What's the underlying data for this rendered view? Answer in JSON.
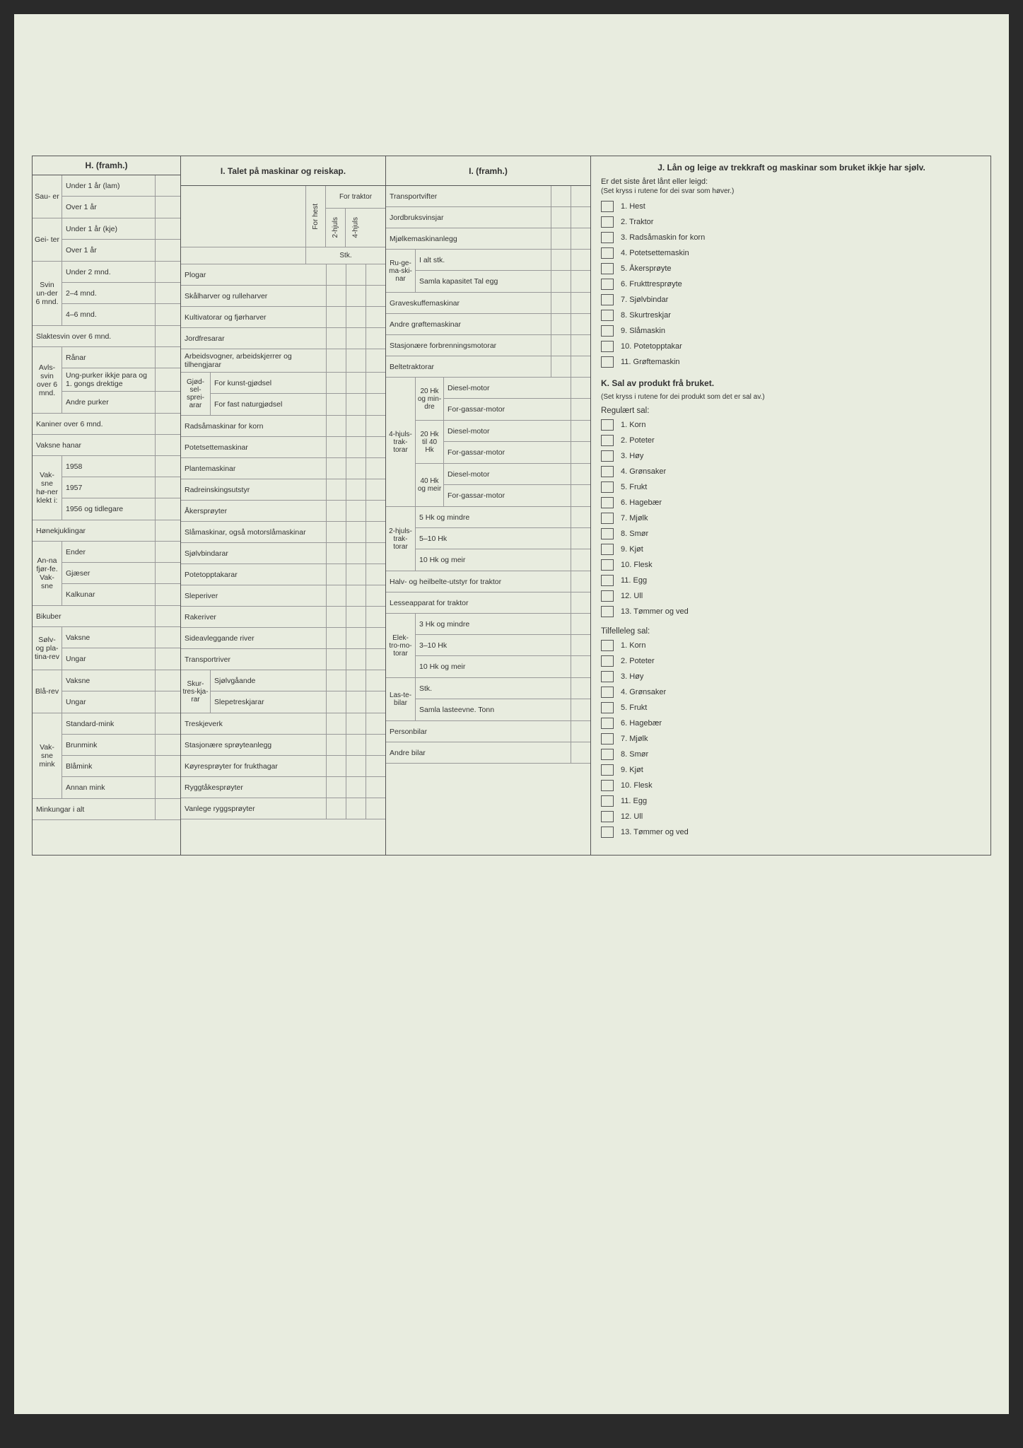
{
  "colors": {
    "paper": "#e8ecdf",
    "punch": "#1a1a1a",
    "border": "#555"
  },
  "punch_holes": 8,
  "sectionH": {
    "title": "H. (framh.)",
    "groups": [
      {
        "side": "Sau-\ner",
        "rows": [
          "Under 1 år (lam)",
          "Over 1 år"
        ]
      },
      {
        "side": "Gei-\nter",
        "rows": [
          "Under 1 år (kje)",
          "Over 1 år"
        ]
      },
      {
        "side": "Svin un-der 6 mnd.",
        "rows": [
          "Under 2 mnd.",
          "2–4 mnd.",
          "4–6 mnd."
        ]
      }
    ],
    "singles1": [
      "Slaktesvin over 6 mnd."
    ],
    "avls": {
      "side": "Avls-svin over 6 mnd.",
      "rows": [
        "Rånar",
        "Ung-purker ikkje para og 1. gongs drektige",
        "Andre purker"
      ]
    },
    "singles2": [
      "Kaniner over 6 mnd.",
      "Vaksne hanar"
    ],
    "honer": {
      "side": "Vak-sne hø-ner klekt i:",
      "rows": [
        "1958",
        "1957",
        "1956 og tidlegare"
      ]
    },
    "singles3": [
      "Hønekjuklingar"
    ],
    "fjorfe": {
      "side": "An-na fjør-fe. Vak-sne",
      "rows": [
        "Ender",
        "Gjæser",
        "Kalkunar"
      ]
    },
    "singles4": [
      "Bikuber"
    ],
    "rev1": {
      "side": "Sølv- og pla-tina-rev",
      "rows": [
        "Vaksne",
        "Ungar"
      ]
    },
    "rev2": {
      "side": "Blå-rev",
      "rows": [
        "Vaksne",
        "Ungar"
      ]
    },
    "mink": {
      "side": "Vak-sne mink",
      "rows": [
        "Standard-mink",
        "Brunmink",
        "Blåmink",
        "Annan mink"
      ]
    },
    "singles5": [
      "Minkungar i alt"
    ]
  },
  "sectionI1": {
    "title": "I. Talet på maskinar og reiskap.",
    "head": {
      "for_traktor": "For traktor",
      "for_hest": "For hest",
      "c2": "2-hjuls",
      "c4": "4-hjuls",
      "stk": "Stk."
    },
    "rows1": [
      "Plogar",
      "Skålharver og rulleharver",
      "Kultivatorar og fjørharver",
      "Jordfresarar",
      "Arbeidsvogner, arbeidskjerrer og tilhengjarar"
    ],
    "gjodsel": {
      "side": "Gjød-sel-sprei-arar",
      "rows": [
        "For kunst-gjødsel",
        "For fast naturgjødsel"
      ]
    },
    "rows2": [
      "Radsåmaskinar for korn",
      "Potetsettemaskinar",
      "Plantemaskinar",
      "Radreinskingsutstyr",
      "Åkersprøyter",
      "Slåmaskinar, også motorslåmaskinar",
      "Sjølvbindarar",
      "Potetopptakarar",
      "Sleperiver",
      "Rakeriver",
      "Sideavleggande river",
      "Transportriver"
    ],
    "skur": {
      "side": "Skur-tres-kja-rar",
      "rows": [
        "Sjølvgåande",
        "Slepetreskjarar"
      ]
    },
    "rows3": [
      "Treskjeverk",
      "Stasjonære sprøyteanlegg",
      "Køyresprøyter for frukthagar",
      "Ryggtåkesprøyter",
      "Vanlege ryggsprøyter"
    ]
  },
  "sectionI2": {
    "title": "I. (framh.)",
    "top": [
      "Transportvifter",
      "Jordbruksvinsjar",
      "Mjølkemaskinanlegg"
    ],
    "ruge": {
      "side": "Ru-ge-ma-ski-nar",
      "rows": [
        "I alt stk.",
        "Samla kapasitet Tal egg"
      ]
    },
    "mid": [
      "Graveskuffemaskinar",
      "Andre grøftemaskinar",
      "Stasjonære forbrenningsmotorar",
      "Beltetraktorar"
    ],
    "trak4": {
      "side": "4-hjuls-trak-torar",
      "groups": [
        {
          "mid": "20 Hk og min-dre",
          "rows": [
            "Diesel-motor",
            "For-gassar-motor"
          ]
        },
        {
          "mid": "20 Hk til 40 Hk",
          "rows": [
            "Diesel-motor",
            "For-gassar-motor"
          ]
        },
        {
          "mid": "40 Hk og meir",
          "rows": [
            "Diesel-motor",
            "For-gassar-motor"
          ]
        }
      ]
    },
    "trak2": {
      "side": "2-hjuls-trak-torar",
      "rows": [
        "5 Hk og mindre",
        "5–10 Hk",
        "10 Hk og meir"
      ]
    },
    "mid2": [
      "Halv- og heilbelte-utstyr for traktor",
      "Lesseapparat for traktor"
    ],
    "elek": {
      "side": "Elek-tro-mo-torar",
      "rows": [
        "3 Hk og mindre",
        "3–10 Hk",
        "10 Hk og meir"
      ]
    },
    "laste": {
      "side": "Las-te-bilar",
      "rows": [
        "Stk.",
        "Samla lasteevne. Tonn"
      ]
    },
    "bottom": [
      "Personbilar",
      "Andre bilar"
    ]
  },
  "sectionJ": {
    "title": "J. Lån og leige av trekkraft og maskinar som bruket ikkje har sjølv.",
    "intro": "Er det siste året lånt eller leigd:",
    "note": "(Set kryss i rutene for dei svar som høver.)",
    "items": [
      "1. Hest",
      "2. Traktor",
      "3. Radsåmaskin for korn",
      "4. Potetsettemaskin",
      "5. Åkersprøyte",
      "6. Frukttresprøyte",
      "7. Sjølvbindar",
      "8. Skurtreskjar",
      "9. Slåmaskin",
      "10. Potetopptakar",
      "11. Grøftemaskin"
    ]
  },
  "sectionK": {
    "title": "K. Sal av produkt frå bruket.",
    "note": "(Set kryss i rutene for dei produkt som det er sal av.)",
    "reg_head": "Regulært sal:",
    "reg": [
      "1. Korn",
      "2. Poteter",
      "3. Høy",
      "4. Grønsaker",
      "5. Frukt",
      "6. Hagebær",
      "7. Mjølk",
      "8. Smør",
      "9. Kjøt",
      "10. Flesk",
      "11. Egg",
      "12. Ull",
      "13. Tømmer og ved"
    ],
    "til_head": "Tilfelleleg sal:",
    "til": [
      "1. Korn",
      "2. Poteter",
      "3. Høy",
      "4. Grønsaker",
      "5. Frukt",
      "6. Hagebær",
      "7. Mjølk",
      "8. Smør",
      "9. Kjøt",
      "10. Flesk",
      "11. Egg",
      "12. Ull",
      "13. Tømmer og ved"
    ]
  }
}
